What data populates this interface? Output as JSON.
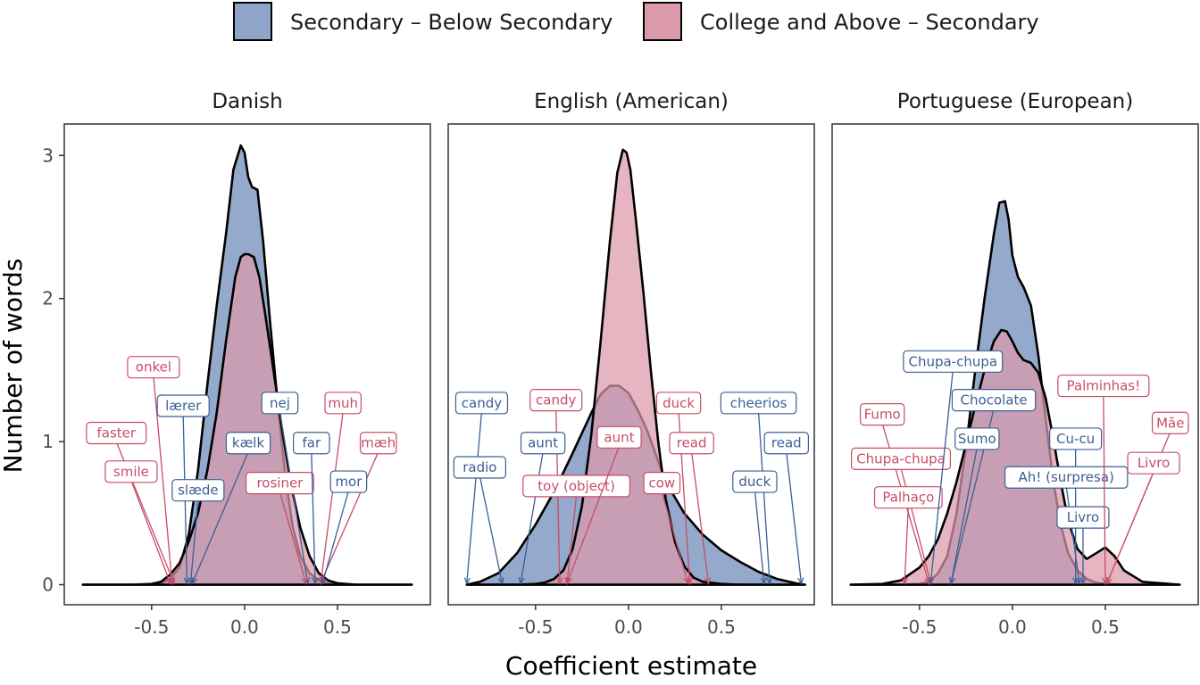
{
  "chart_data": {
    "type": "area",
    "xlabel": "Coefficient estimate",
    "ylabel": "Number of words",
    "xlim": [
      -0.97,
      1.0
    ],
    "ylim": [
      -0.14,
      3.22
    ],
    "xticks": [
      -0.5,
      0.0,
      0.5
    ],
    "xtick_labels": [
      "-0.5",
      "0.0",
      "0.5"
    ],
    "yticks": [
      0,
      1,
      2,
      3
    ],
    "ytick_labels": [
      "0",
      "1",
      "2",
      "3"
    ],
    "grid": false,
    "legend_position": "top",
    "legend": [
      {
        "label": "Secondary – Below Secondary",
        "color": "#8EA4C8"
      },
      {
        "label": "College and Above – Secondary",
        "color": "#DB9AA9"
      }
    ],
    "colors": {
      "blue_fill": "#8EA4C8",
      "pink_fill": "#DB9AA9",
      "blue_text": "#3A5F95",
      "pink_text": "#C84D68",
      "overlap": "#A67D91"
    },
    "panels": [
      {
        "title": "Danish",
        "series": [
          {
            "name": "Secondary – Below Secondary",
            "x": [
              -0.87,
              -0.6,
              -0.5,
              -0.45,
              -0.4,
              -0.35,
              -0.3,
              -0.25,
              -0.2,
              -0.15,
              -0.1,
              -0.06,
              -0.02,
              0.0,
              0.02,
              0.04,
              0.07,
              0.1,
              0.14,
              0.18,
              0.22,
              0.26,
              0.3,
              0.35,
              0.4,
              0.45,
              0.5,
              0.6,
              0.9
            ],
            "y": [
              0,
              0,
              0.002,
              0.01,
              0.04,
              0.12,
              0.35,
              0.8,
              1.4,
              1.95,
              2.45,
              2.9,
              3.07,
              3.02,
              2.85,
              2.78,
              2.76,
              2.4,
              1.8,
              1.25,
              0.75,
              0.4,
              0.2,
              0.08,
              0.03,
              0.01,
              0.002,
              0,
              0
            ]
          },
          {
            "name": "College and Above – Secondary",
            "x": [
              -0.87,
              -0.6,
              -0.5,
              -0.45,
              -0.4,
              -0.35,
              -0.3,
              -0.25,
              -0.2,
              -0.15,
              -0.1,
              -0.05,
              -0.02,
              0.0,
              0.02,
              0.05,
              0.08,
              0.11,
              0.15,
              0.2,
              0.25,
              0.3,
              0.35,
              0.4,
              0.45,
              0.5,
              0.6,
              0.9
            ],
            "y": [
              0,
              0,
              0.005,
              0.02,
              0.07,
              0.15,
              0.3,
              0.5,
              0.8,
              1.2,
              1.7,
              2.15,
              2.29,
              2.31,
              2.31,
              2.29,
              2.15,
              1.9,
              1.55,
              1.1,
              0.7,
              0.4,
              0.2,
              0.08,
              0.03,
              0.01,
              0,
              0
            ]
          }
        ],
        "annotations": [
          {
            "text": "onkel",
            "group": "pink",
            "x": -0.49,
            "y": 1.52,
            "target": -0.39
          },
          {
            "text": "faster",
            "group": "pink",
            "x": -0.69,
            "y": 1.06,
            "target": -0.38
          },
          {
            "text": "smile",
            "group": "pink",
            "x": -0.61,
            "y": 0.79,
            "target": -0.4
          },
          {
            "text": "lærer",
            "group": "blue",
            "x": -0.33,
            "y": 1.25,
            "target": -0.31
          },
          {
            "text": "slæde",
            "group": "blue",
            "x": -0.25,
            "y": 0.66,
            "target": -0.29
          },
          {
            "text": "kælk",
            "group": "blue",
            "x": 0.02,
            "y": 0.99,
            "target": -0.28
          },
          {
            "text": "nej",
            "group": "blue",
            "x": 0.19,
            "y": 1.27,
            "target": 0.34
          },
          {
            "text": "rosiner",
            "group": "pink",
            "x": 0.19,
            "y": 0.71,
            "target": 0.33
          },
          {
            "text": "far",
            "group": "blue",
            "x": 0.36,
            "y": 0.99,
            "target": 0.38
          },
          {
            "text": "muh",
            "group": "pink",
            "x": 0.53,
            "y": 1.27,
            "target": 0.41
          },
          {
            "text": "mæh",
            "group": "pink",
            "x": 0.72,
            "y": 0.99,
            "target": 0.41
          },
          {
            "text": "mor",
            "group": "blue",
            "x": 0.56,
            "y": 0.72,
            "target": 0.42
          }
        ]
      },
      {
        "title": "English (American)",
        "series": [
          {
            "name": "Secondary – Below Secondary",
            "x": [
              -0.87,
              -0.8,
              -0.7,
              -0.6,
              -0.5,
              -0.4,
              -0.3,
              -0.2,
              -0.15,
              -0.1,
              -0.05,
              0.0,
              0.05,
              0.1,
              0.15,
              0.2,
              0.3,
              0.4,
              0.5,
              0.6,
              0.7,
              0.8,
              0.9,
              0.95
            ],
            "y": [
              0,
              0.02,
              0.08,
              0.22,
              0.42,
              0.65,
              0.92,
              1.2,
              1.33,
              1.39,
              1.39,
              1.34,
              1.22,
              1.08,
              0.9,
              0.72,
              0.5,
              0.35,
              0.24,
              0.16,
              0.09,
              0.04,
              0.01,
              0
            ]
          },
          {
            "name": "College and Above – Secondary",
            "x": [
              -0.87,
              -0.6,
              -0.5,
              -0.45,
              -0.4,
              -0.35,
              -0.3,
              -0.25,
              -0.2,
              -0.15,
              -0.1,
              -0.06,
              -0.03,
              -0.01,
              0.01,
              0.04,
              0.08,
              0.12,
              0.16,
              0.2,
              0.25,
              0.3,
              0.35,
              0.4,
              0.5,
              0.6,
              0.9,
              0.95
            ],
            "y": [
              0,
              0,
              0.005,
              0.015,
              0.04,
              0.1,
              0.25,
              0.55,
              1.05,
              1.7,
              2.4,
              2.88,
              3.04,
              3.02,
              2.9,
              2.55,
              2.05,
              1.5,
              1.0,
              0.6,
              0.3,
              0.13,
              0.05,
              0.02,
              0.005,
              0,
              0,
              0
            ]
          }
        ],
        "annotations": [
          {
            "text": "candy",
            "group": "blue",
            "x": -0.79,
            "y": 1.27,
            "target": -0.87
          },
          {
            "text": "radio",
            "group": "blue",
            "x": -0.8,
            "y": 0.82,
            "target": -0.68
          },
          {
            "text": "candy",
            "group": "pink",
            "x": -0.39,
            "y": 1.29,
            "target": -0.37
          },
          {
            "text": "aunt",
            "group": "blue",
            "x": -0.46,
            "y": 0.99,
            "target": -0.58
          },
          {
            "text": "toy (object)",
            "group": "pink",
            "x": -0.28,
            "y": 0.69,
            "target": -0.33
          },
          {
            "text": "aunt",
            "group": "pink",
            "x": -0.05,
            "y": 1.03,
            "target": -0.33
          },
          {
            "text": "duck",
            "group": "pink",
            "x": 0.27,
            "y": 1.27,
            "target": 0.33
          },
          {
            "text": "read",
            "group": "pink",
            "x": 0.34,
            "y": 0.99,
            "target": 0.43
          },
          {
            "text": "cow",
            "group": "pink",
            "x": 0.18,
            "y": 0.71,
            "target": 0.32
          },
          {
            "text": "cheerios",
            "group": "blue",
            "x": 0.7,
            "y": 1.27,
            "target": 0.76
          },
          {
            "text": "read",
            "group": "blue",
            "x": 0.85,
            "y": 0.99,
            "target": 0.93
          },
          {
            "text": "duck",
            "group": "blue",
            "x": 0.68,
            "y": 0.72,
            "target": 0.73
          }
        ]
      },
      {
        "title": "Portuguese (European)",
        "series": [
          {
            "name": "Secondary – Below Secondary",
            "x": [
              -0.87,
              -0.6,
              -0.5,
              -0.45,
              -0.4,
              -0.35,
              -0.3,
              -0.25,
              -0.2,
              -0.15,
              -0.1,
              -0.07,
              -0.04,
              -0.02,
              0.0,
              0.03,
              0.06,
              0.1,
              0.14,
              0.18,
              0.22,
              0.26,
              0.3,
              0.35,
              0.4,
              0.45,
              0.5,
              0.6,
              0.9
            ],
            "y": [
              0,
              0,
              0.005,
              0.02,
              0.08,
              0.2,
              0.5,
              0.95,
              1.5,
              2.0,
              2.45,
              2.67,
              2.68,
              2.55,
              2.3,
              2.15,
              2.08,
              1.95,
              1.6,
              1.15,
              0.72,
              0.42,
              0.22,
              0.1,
              0.04,
              0.015,
              0.005,
              0,
              0
            ]
          },
          {
            "name": "College and Above – Secondary",
            "x": [
              -0.87,
              -0.7,
              -0.6,
              -0.5,
              -0.45,
              -0.4,
              -0.35,
              -0.3,
              -0.25,
              -0.2,
              -0.15,
              -0.1,
              -0.06,
              -0.03,
              0.0,
              0.03,
              0.06,
              0.1,
              0.14,
              0.18,
              0.22,
              0.26,
              0.3,
              0.35,
              0.4,
              0.45,
              0.5,
              0.55,
              0.6,
              0.7,
              0.9
            ],
            "y": [
              0,
              0.005,
              0.03,
              0.12,
              0.2,
              0.32,
              0.5,
              0.72,
              0.98,
              1.25,
              1.5,
              1.7,
              1.78,
              1.77,
              1.7,
              1.62,
              1.57,
              1.55,
              1.48,
              1.3,
              1.02,
              0.72,
              0.45,
              0.25,
              0.18,
              0.22,
              0.26,
              0.2,
              0.1,
              0.02,
              0
            ]
          }
        ],
        "annotations": [
          {
            "text": "Fumo",
            "group": "pink",
            "x": -0.7,
            "y": 1.19,
            "target": -0.45
          },
          {
            "text": "Chupa-chupa",
            "group": "pink",
            "x": -0.6,
            "y": 0.88,
            "target": -0.44
          },
          {
            "text": "Palhaço",
            "group": "pink",
            "x": -0.56,
            "y": 0.61,
            "target": -0.58
          },
          {
            "text": "Chupa-chupa",
            "group": "blue",
            "x": -0.32,
            "y": 1.56,
            "target": -0.44
          },
          {
            "text": "Chocolate",
            "group": "blue",
            "x": -0.1,
            "y": 1.29,
            "target": -0.33
          },
          {
            "text": "Sumo",
            "group": "blue",
            "x": -0.19,
            "y": 1.02,
            "target": -0.33
          },
          {
            "text": "Cu-cu",
            "group": "blue",
            "x": 0.34,
            "y": 1.02,
            "target": 0.34
          },
          {
            "text": "Ah! (surpresa)",
            "group": "blue",
            "x": 0.29,
            "y": 0.75,
            "target": 0.36
          },
          {
            "text": "Livro",
            "group": "blue",
            "x": 0.38,
            "y": 0.47,
            "target": 0.38
          },
          {
            "text": "Palminhas!",
            "group": "pink",
            "x": 0.49,
            "y": 1.39,
            "target": 0.5
          },
          {
            "text": "Mãe",
            "group": "pink",
            "x": 0.85,
            "y": 1.13,
            "target": 0.51
          },
          {
            "text": "Livro",
            "group": "pink",
            "x": 0.76,
            "y": 0.85,
            "target": 0.51
          }
        ]
      }
    ]
  }
}
